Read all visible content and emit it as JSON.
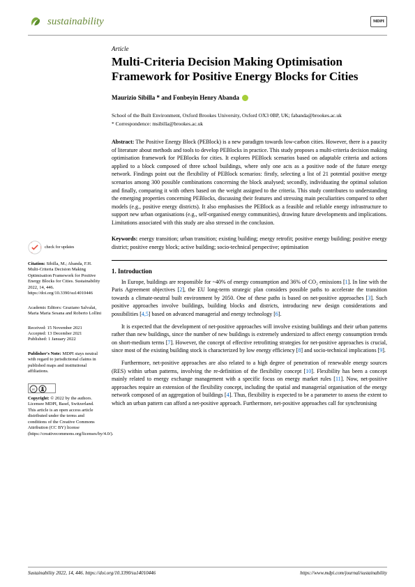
{
  "header": {
    "journal_name": "sustainability",
    "publisher_badge": "MDPI"
  },
  "article": {
    "type": "Article",
    "title": "Multi-Criteria Decision Making Optimisation Framework for Positive Energy Blocks for Cities",
    "authors": "Maurizio Sibilla * and Fonbeyin Henry Abanda",
    "affiliation": "School of the Built Environment, Oxford Brookes University, Oxford OX3 0BP, UK; fabanda@brookes.ac.uk",
    "correspondence": "* Correspondence: msibilla@brookes.ac.uk",
    "abstract_label": "Abstract:",
    "abstract_text": "The Positive Energy Block (PEBlock) is a new paradigm towards low-carbon cities. However, there is a paucity of literature about methods and tools to develop PEBlocks in practice. This study proposes a multi-criteria decision making optimisation framework for PEBlocks for cities. It explores PEBlock scenarios based on adaptable criteria and actions applied to a block composed of three school buildings, where only one acts as a positive node of the future energy network. Findings point out the flexibility of PEBlock scenarios: firstly, selecting a list of 21 potential positive energy scenarios among 300 possible combinations concerning the block analysed; secondly, individuating the optimal solution and finally, comparing it with others based on the weight assigned to the criteria. This study contributes to understanding the emerging properties concerning PEBlocks, discussing their features and stressing main peculiarities compared to other models (e.g., positive energy districts). It also emphasises the PEBlock as a feasible and reliable energy infrastructure to support new urban organisations (e.g., self-organised energy communities), drawing future developments and implications. Limitations associated with this study are also stressed in the conclusion.",
    "keywords_label": "Keywords:",
    "keywords_text": "energy transition; urban transition; existing building; energy retrofit; positive energy building; positive energy district; positive energy block; active building; socio-technical perspective; optimisation",
    "section1_title": "1. Introduction",
    "para1": "In Europe, buildings are responsible for ~40% of energy consumption and 36% of CO₂ emissions [1]. In line with the Paris Agreement objectives [2], the EU long-term strategic plan considers possible paths to accelerate the transition towards a climate-neutral built environment by 2050. One of these paths is based on net-positive approaches [3]. Such positive approaches involve buildings, building blocks and districts, introducing new design considerations and possibilities [4,5] based on advanced managerial and energy technology [6].",
    "para2": "It is expected that the development of net-positive approaches will involve existing buildings and their urban patterns rather than new buildings, since the number of new buildings is extremely undersized to affect energy consumption trends on short-medium terms [7]. However, the concept of effective retrofitting strategies for net-positive approaches is crucial, since most of the existing building stock is characterized by low energy efficiency [8] and socio-technical implications [9].",
    "para3": "Furthermore, net-positive approaches are also related to a high degree of penetration of renewable energy sources (RES) within urban patterns, involving the re-definition of the flexibility concept [10]. Flexibility has been a concept mainly related to energy exchange management with a specific focus on energy market rules [11]. Now, net-positive approaches require an extension of the flexibility concept, including the spatial and managerial organisation of the energy network composed of an aggregation of buildings [4]. Thus, flexibility is expected to be a parameter to assess the extent to which an urban pattern can afford a net-positive approach. Furthermore, net-positive approaches call for synchronising"
  },
  "sidebar": {
    "check_updates": "check for updates",
    "citation_label": "Citation:",
    "citation_text": "Sibilla, M.; Abanda, F.H. Multi-Criteria Decision Making Optimisation Framework for Positive Energy Blocks for Cities. Sustainability 2022, 14, 446. https://doi.org/10.3390/su14010446",
    "editors_label": "Academic Editors:",
    "editors_text": "Graziano Salvalai, Maria Maria Sesana and Roberto Lollini",
    "received": "Received: 15 November 2021",
    "accepted": "Accepted: 13 December 2021",
    "published": "Published: 1 January 2022",
    "note_label": "Publisher's Note:",
    "note_text": "MDPI stays neutral with regard to jurisdictional claims in published maps and institutional affiliations.",
    "cc_label": "CC BY",
    "copyright_label": "Copyright:",
    "copyright_text": "© 2022 by the authors. Licensee MDPI, Basel, Switzerland. This article is an open access article distributed under the terms and conditions of the Creative Commons Attribution (CC BY) license (https://creativecommons.org/licenses/by/4.0/)."
  },
  "footer": {
    "left": "Sustainability 2022, 14, 446. https://doi.org/10.3390/su14010446",
    "right": "https://www.mdpi.com/journal/sustainability"
  },
  "colors": {
    "journal_green": "#6c8c3c",
    "link_blue": "#0066cc",
    "orcid_green": "#a6ce39"
  }
}
